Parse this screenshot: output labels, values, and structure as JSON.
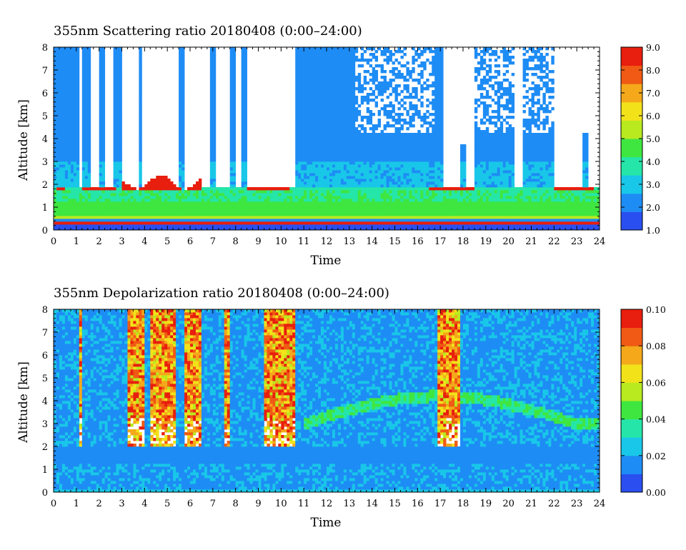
{
  "chart_data": [
    {
      "type": "heatmap",
      "title": "355nm Scattering ratio  20180408 (0:00–24:00)",
      "xlabel": "Time",
      "ylabel": "Altitude [km]",
      "xlim": [
        0,
        24
      ],
      "ylim": [
        0,
        8
      ],
      "xticks": [
        "0",
        "1",
        "2",
        "3",
        "4",
        "5",
        "6",
        "7",
        "8",
        "9",
        "10",
        "11",
        "12",
        "13",
        "14",
        "15",
        "16",
        "17",
        "18",
        "19",
        "20",
        "21",
        "22",
        "23",
        "24"
      ],
      "yticks": [
        "0",
        "1",
        "2",
        "3",
        "4",
        "5",
        "6",
        "7",
        "8"
      ],
      "colorbar": {
        "range": [
          1.0,
          9.0
        ],
        "ticks": [
          "1.0",
          "2.0",
          "3.0",
          "4.0",
          "5.0",
          "6.0",
          "7.0",
          "8.0",
          "9.0"
        ],
        "colors": [
          "#2a4ff0",
          "#1e8cf5",
          "#19c7e8",
          "#25e6a8",
          "#3fe640",
          "#b8ea1f",
          "#f2e21a",
          "#f4a81a",
          "#f05a14",
          "#e81e0e"
        ]
      },
      "features": {
        "boundary_layer_km": [
          0.3,
          1.3
        ],
        "cloud_base_km": [
          1.7,
          2.6
        ],
        "clear_sky_regions": "white (missing/above cloud) above cloud layers"
      }
    },
    {
      "type": "heatmap",
      "title": "355nm Depolarization ratio  20180408 (0:00–24:00)",
      "xlabel": "Time",
      "ylabel": "Altitude [km]",
      "xlim": [
        0,
        24
      ],
      "ylim": [
        0,
        8
      ],
      "xticks": [
        "0",
        "1",
        "2",
        "3",
        "4",
        "5",
        "6",
        "7",
        "8",
        "9",
        "10",
        "11",
        "12",
        "13",
        "14",
        "15",
        "16",
        "17",
        "18",
        "19",
        "20",
        "21",
        "22",
        "23",
        "24"
      ],
      "yticks": [
        "0",
        "1",
        "2",
        "3",
        "4",
        "5",
        "6",
        "7",
        "8"
      ],
      "colorbar": {
        "range": [
          0.0,
          0.1
        ],
        "ticks": [
          "0.00",
          "0.02",
          "0.04",
          "0.06",
          "0.08",
          "0.10"
        ],
        "colors": [
          "#2a4ff0",
          "#1e8cf5",
          "#19c7e8",
          "#25e6a8",
          "#3fe640",
          "#b8ea1f",
          "#f2e21a",
          "#f4a81a",
          "#f05a14",
          "#e81e0e"
        ]
      },
      "features": {
        "high_depol_columns_hours": [
          [
            1.1,
            1.3
          ],
          [
            3.3,
            4.0
          ],
          [
            4.2,
            5.4
          ],
          [
            5.8,
            6.5
          ],
          [
            7.5,
            7.8
          ],
          [
            9.2,
            10.6
          ],
          [
            16.9,
            17.9
          ]
        ],
        "dust_layer_km": [
          2.5,
          4.3
        ]
      }
    }
  ]
}
